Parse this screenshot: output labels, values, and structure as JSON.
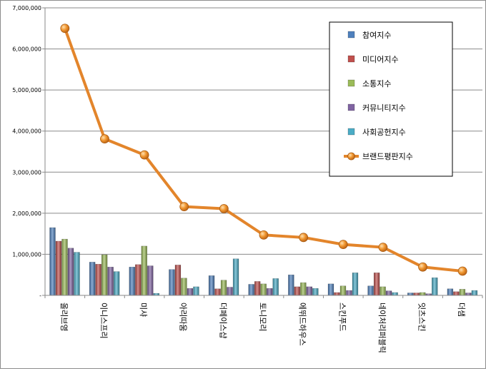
{
  "chart_data": {
    "type": "bar",
    "categories": [
      "올리브영",
      "이니스프리",
      "미샤",
      "아리따움",
      "더페이스샵",
      "토니모리",
      "에뛰드하우스",
      "스킨푸드",
      "네이처리퍼블릭",
      "잇츠스킨",
      "더샘"
    ],
    "ylim": [
      0,
      7000000
    ],
    "yticks": [
      0,
      1000000,
      2000000,
      3000000,
      4000000,
      5000000,
      6000000,
      7000000
    ],
    "ytick_labels": [
      "-",
      "1,000,000",
      "2,000,000",
      "3,000,000",
      "4,000,000",
      "5,000,000",
      "6,000,000",
      "7,000,000"
    ],
    "grid": true,
    "legend_position": "top-right",
    "series": [
      {
        "name": "참여지수",
        "color": "#4f81bd",
        "type": "bar",
        "values": [
          1650000,
          810000,
          690000,
          630000,
          480000,
          270000,
          500000,
          280000,
          230000,
          60000,
          160000
        ]
      },
      {
        "name": "미디어지수",
        "color": "#c0504d",
        "type": "bar",
        "values": [
          1320000,
          760000,
          750000,
          740000,
          160000,
          340000,
          210000,
          70000,
          550000,
          60000,
          90000
        ]
      },
      {
        "name": "소통지수",
        "color": "#9bbb59",
        "type": "bar",
        "values": [
          1370000,
          990000,
          1200000,
          420000,
          370000,
          280000,
          310000,
          230000,
          210000,
          70000,
          150000
        ]
      },
      {
        "name": "커뮤니티지수",
        "color": "#8064a2",
        "type": "bar",
        "values": [
          1150000,
          690000,
          720000,
          170000,
          200000,
          170000,
          210000,
          120000,
          110000,
          40000,
          60000
        ]
      },
      {
        "name": "사회공헌지수",
        "color": "#4bacc6",
        "type": "bar",
        "values": [
          1050000,
          580000,
          50000,
          210000,
          890000,
          410000,
          170000,
          550000,
          70000,
          430000,
          120000
        ]
      },
      {
        "name": "브랜드평판지수",
        "color": "#e3852b",
        "type": "line",
        "values": [
          6500000,
          3810000,
          3420000,
          2160000,
          2110000,
          1470000,
          1410000,
          1240000,
          1170000,
          690000,
          590000
        ]
      }
    ]
  }
}
